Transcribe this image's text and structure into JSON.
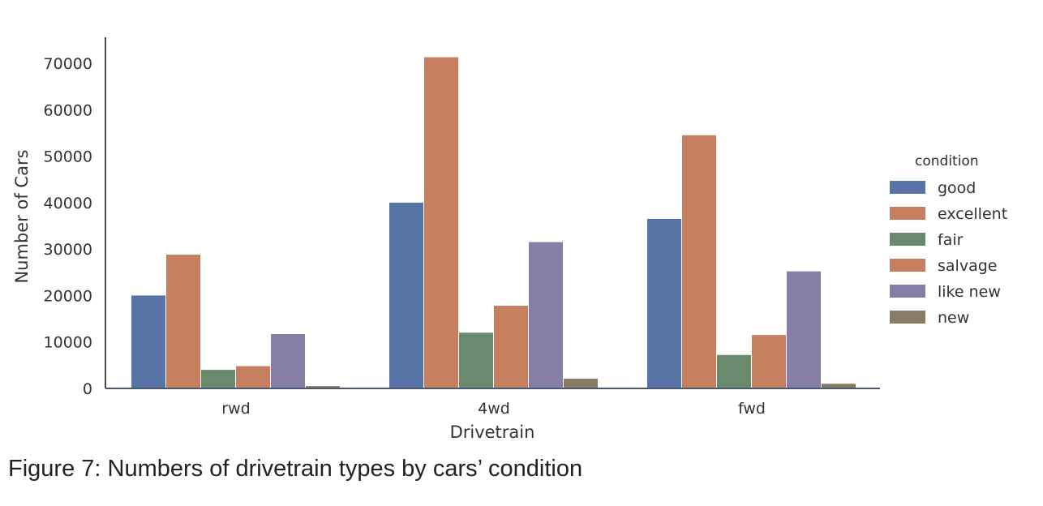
{
  "caption": "Figure 7: Numbers of drivetrain types by cars’ condition",
  "chart_data": {
    "type": "bar",
    "xlabel": "Drivetrain",
    "ylabel": "Number of Cars",
    "categories": [
      "rwd",
      "4wd",
      "fwd"
    ],
    "ylim": [
      0,
      75000
    ],
    "yticks": [
      0,
      10000,
      20000,
      30000,
      40000,
      50000,
      60000,
      70000
    ],
    "grid": false,
    "legend": {
      "title": "condition",
      "placement": "right"
    },
    "series": [
      {
        "name": "good",
        "color": "#5874a6",
        "values": [
          20000,
          40000,
          36500
        ]
      },
      {
        "name": "excellent",
        "color": "#c7805f",
        "values": [
          28800,
          71300,
          54500
        ]
      },
      {
        "name": "fair",
        "color": "#6a8a6e",
        "values": [
          4000,
          12000,
          7200
        ]
      },
      {
        "name": "salvage",
        "color": "#c7805f",
        "values": [
          4800,
          17800,
          11500
        ]
      },
      {
        "name": "like new",
        "color": "#877ea7",
        "values": [
          11700,
          31500,
          25200
        ]
      },
      {
        "name": "new",
        "color": "#8a7b65",
        "values": [
          500,
          2100,
          1000
        ]
      }
    ]
  }
}
